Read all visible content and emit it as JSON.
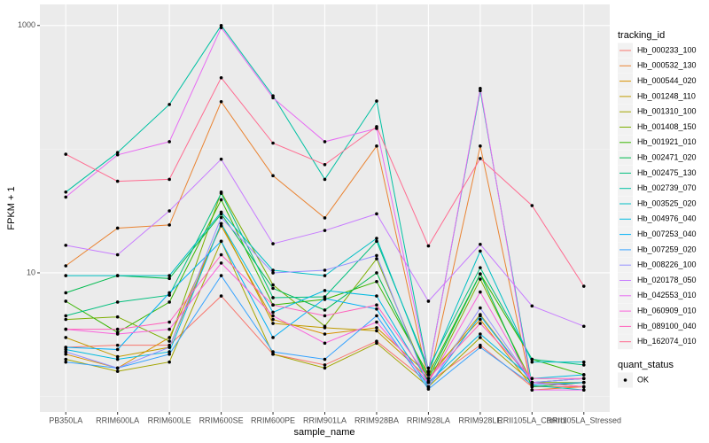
{
  "chart_data": {
    "type": "line",
    "x_label": "sample_name",
    "y_label": "FPKM + 1",
    "log_y": true,
    "grid": true,
    "categories": [
      "PB350LA",
      "RRIM600LA",
      "RRIM600LE",
      "RRIM600SE",
      "RRIM600PE",
      "RRIM901LA",
      "RRIM928BA",
      "RRIM928LA",
      "RRIM928LE",
      "RRII105LA_Control",
      "RRII105LA_Stressed"
    ],
    "ylim": [
      0.75,
      1480
    ],
    "yticks": [
      10,
      1000
    ],
    "legend_title": "tracking_id",
    "legend_position": "right",
    "point_legend": {
      "title": "quant_status",
      "labels": [
        "OK"
      ],
      "color": "#000000"
    },
    "series": [
      {
        "name": "Hb_000233_100",
        "color": "#F8766D",
        "values": [
          2.5,
          2.6,
          2.6,
          6.5,
          2.2,
          1.8,
          2.8,
          1.3,
          2.6,
          1.2,
          1.2
        ]
      },
      {
        "name": "Hb_000532_130",
        "color": "#EA8331",
        "values": [
          11.4,
          23,
          24.4,
          242,
          61,
          27.8,
          106,
          1.33,
          106,
          1.13,
          1.2
        ]
      },
      {
        "name": "Hb_000544_020",
        "color": "#D89000",
        "values": [
          2.2,
          1.7,
          3.0,
          24,
          4.2,
          3.2,
          3.6,
          1.5,
          4.2,
          1.2,
          1.3
        ]
      },
      {
        "name": "Hb_001248_110",
        "color": "#C09B00",
        "values": [
          3.0,
          2.1,
          2.5,
          25,
          3.9,
          3.6,
          3.4,
          1.4,
          4.6,
          1.3,
          1.4
        ]
      },
      {
        "name": "Hb_001310_100",
        "color": "#A3A500",
        "values": [
          2.0,
          1.6,
          1.9,
          18,
          2.2,
          1.7,
          2.7,
          1.2,
          3.0,
          1.3,
          1.2
        ]
      },
      {
        "name": "Hb_001408_150",
        "color": "#7CAE00",
        "values": [
          4.2,
          4.4,
          2.8,
          45,
          8,
          3.7,
          13,
          1.3,
          8.9,
          1.3,
          1.3
        ]
      },
      {
        "name": "Hb_001921_010",
        "color": "#39B600",
        "values": [
          5.9,
          3.3,
          5.8,
          39,
          5.5,
          6.1,
          8.5,
          1.5,
          9.8,
          2.0,
          1.5
        ]
      },
      {
        "name": "Hb_002471_020",
        "color": "#00BB4E",
        "values": [
          6.9,
          9.5,
          9.0,
          30,
          7.5,
          5.0,
          10,
          1.4,
          9.8,
          1.2,
          1.3
        ]
      },
      {
        "name": "Hb_002475_130",
        "color": "#00BF7D",
        "values": [
          4.5,
          5.8,
          6.6,
          44,
          6.3,
          6.4,
          18,
          1.7,
          11,
          2.0,
          1.8
        ]
      },
      {
        "name": "Hb_002739_070",
        "color": "#00C1A3",
        "values": [
          45,
          94,
          230,
          1000,
          270,
          57,
          245,
          1.6,
          297,
          1.23,
          1.13
        ]
      },
      {
        "name": "Hb_003525_020",
        "color": "#00BFC4",
        "values": [
          9.5,
          9.5,
          9.5,
          31,
          10.5,
          9.5,
          19,
          1.6,
          15,
          1.9,
          1.9
        ]
      },
      {
        "name": "Hb_004976_040",
        "color": "#00BAE0",
        "values": [
          2.4,
          2.0,
          2.3,
          25,
          4.8,
          7.2,
          6.5,
          1.3,
          3.2,
          1.4,
          1.5
        ]
      },
      {
        "name": "Hb_007253_040",
        "color": "#00B0F6",
        "values": [
          2.5,
          2.4,
          6.9,
          18,
          3.0,
          6.2,
          5.1,
          1.2,
          4.5,
          1.3,
          1.4
        ]
      },
      {
        "name": "Hb_007259_020",
        "color": "#35A2FF",
        "values": [
          1.9,
          1.7,
          2.2,
          9.5,
          2.3,
          2.0,
          4.5,
          1.15,
          2.5,
          1.25,
          1.3
        ]
      },
      {
        "name": "Hb_008226_100",
        "color": "#9590FF",
        "values": [
          2.3,
          1.7,
          2.5,
          28,
          10,
          10.5,
          13.8,
          1.2,
          5.2,
          1.3,
          1.4
        ]
      },
      {
        "name": "Hb_020178_050",
        "color": "#C77CFF",
        "values": [
          16.7,
          14,
          31.7,
          83,
          17.2,
          22,
          30,
          5.9,
          17,
          5.4,
          3.7
        ]
      },
      {
        "name": "Hb_042553_010",
        "color": "#E76BF3",
        "values": [
          41,
          90,
          115,
          960,
          260,
          115,
          147,
          1.57,
          310,
          1.13,
          1.13
        ]
      },
      {
        "name": "Hb_060909_010",
        "color": "#FA62DB",
        "values": [
          3.5,
          3.2,
          3.5,
          12,
          4.5,
          2.7,
          4.0,
          1.3,
          7,
          1.3,
          1.2
        ]
      },
      {
        "name": "Hb_089100_040",
        "color": "#FF62BC",
        "values": [
          3.5,
          3.5,
          4,
          14,
          5.5,
          4.5,
          5.5,
          1.4,
          3.9,
          1.4,
          1.4
        ]
      },
      {
        "name": "Hb_162074_010",
        "color": "#FF6C91",
        "values": [
          91,
          55,
          57,
          378,
          112,
          75,
          152,
          16.5,
          84,
          35,
          7.8
        ]
      }
    ]
  }
}
